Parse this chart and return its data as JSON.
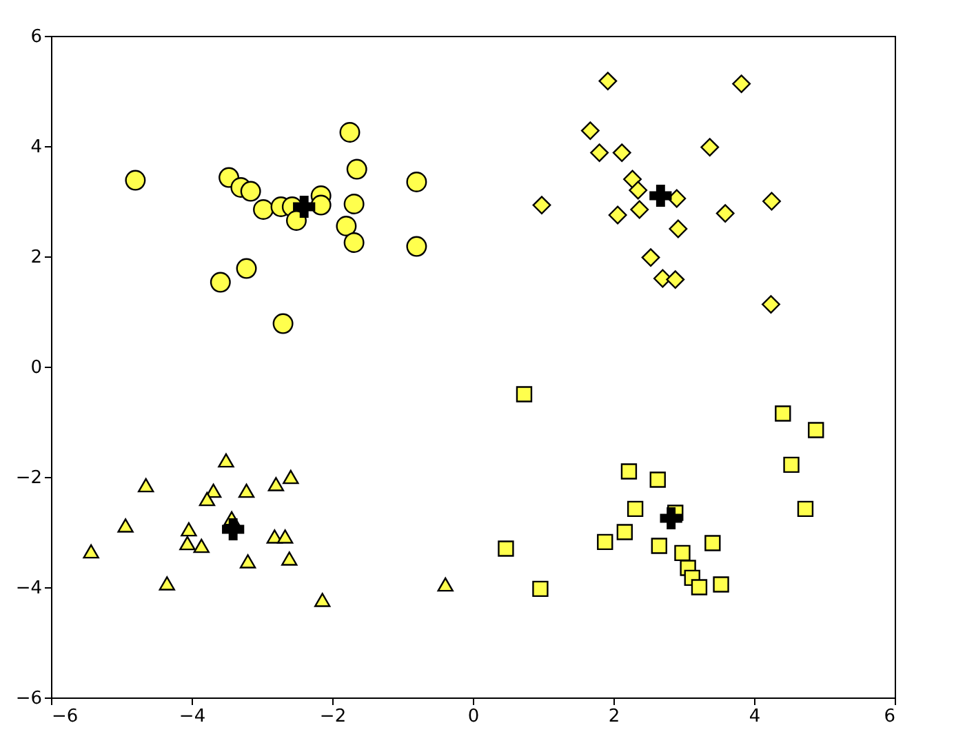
{
  "chart_data": {
    "type": "scatter",
    "xlim": [
      -6,
      6
    ],
    "ylim": [
      -6,
      6
    ],
    "xticks": [
      -6,
      -4,
      -2,
      0,
      2,
      4,
      6
    ],
    "yticks": [
      -6,
      -4,
      -2,
      0,
      2,
      4,
      6
    ],
    "grid": false,
    "series": [
      {
        "color": "#ffff4d",
        "marker": "circle",
        "x": [
          -4.8,
          -3.47,
          -3.3,
          -3.16,
          -2.98,
          -2.73,
          -2.57,
          -2.51,
          -2.16,
          -2.16,
          -1.75,
          -1.65,
          -1.69,
          -1.8,
          -1.69,
          -0.8,
          -0.8,
          -3.22,
          -3.59,
          -2.7
        ],
        "values": [
          3.38,
          3.43,
          3.25,
          3.18,
          2.85,
          2.9,
          2.9,
          2.65,
          3.1,
          2.93,
          4.25,
          3.58,
          2.95,
          2.55,
          2.25,
          3.35,
          2.18,
          1.78,
          1.53,
          0.78
        ]
      },
      {
        "color": "#ffff4d",
        "marker": "diamond",
        "x": [
          1.92,
          3.82,
          1.67,
          1.8,
          2.12,
          3.37,
          2.27,
          2.35,
          2.9,
          0.98,
          2.06,
          2.37,
          3.59,
          4.25,
          2.92,
          2.53,
          2.7,
          2.88,
          4.24
        ],
        "values": [
          5.18,
          5.13,
          4.28,
          3.88,
          3.88,
          3.98,
          3.4,
          3.2,
          3.05,
          2.93,
          2.75,
          2.85,
          2.78,
          3.0,
          2.5,
          1.98,
          1.6,
          1.58,
          1.13
        ]
      },
      {
        "color": "#ffff4d",
        "marker": "triangle",
        "x": [
          -3.51,
          -2.59,
          -4.65,
          -3.69,
          -3.22,
          -2.8,
          -3.78,
          -4.94,
          -3.43,
          -4.04,
          -4.06,
          -3.86,
          -2.82,
          -2.67,
          -5.43,
          -2.61,
          -3.2,
          -4.35,
          -2.14,
          -0.39
        ],
        "values": [
          -1.7,
          -2.0,
          -2.15,
          -2.25,
          -2.25,
          -2.13,
          -2.4,
          -2.88,
          -2.75,
          -2.95,
          -3.2,
          -3.25,
          -3.08,
          -3.08,
          -3.35,
          -3.48,
          -3.53,
          -3.93,
          -4.23,
          -3.95
        ]
      },
      {
        "color": "#ffff4d",
        "marker": "square",
        "x": [
          0.73,
          4.41,
          4.88,
          4.53,
          2.22,
          2.63,
          2.31,
          2.88,
          4.73,
          2.16,
          1.88,
          0.47,
          2.65,
          3.41,
          2.98,
          3.06,
          3.12,
          3.22,
          3.53,
          0.96
        ],
        "values": [
          -0.5,
          -0.85,
          -1.15,
          -1.78,
          -1.9,
          -2.05,
          -2.58,
          -2.65,
          -2.58,
          -3.0,
          -3.18,
          -3.3,
          -3.25,
          -3.2,
          -3.38,
          -3.65,
          -3.83,
          -4.0,
          -3.95,
          -4.03
        ]
      },
      {
        "color": "#000000",
        "marker": "cross",
        "x": [
          -2.4,
          2.67,
          -3.41,
          2.82
        ],
        "values": [
          2.9,
          3.1,
          -2.95,
          -2.75
        ]
      }
    ]
  }
}
